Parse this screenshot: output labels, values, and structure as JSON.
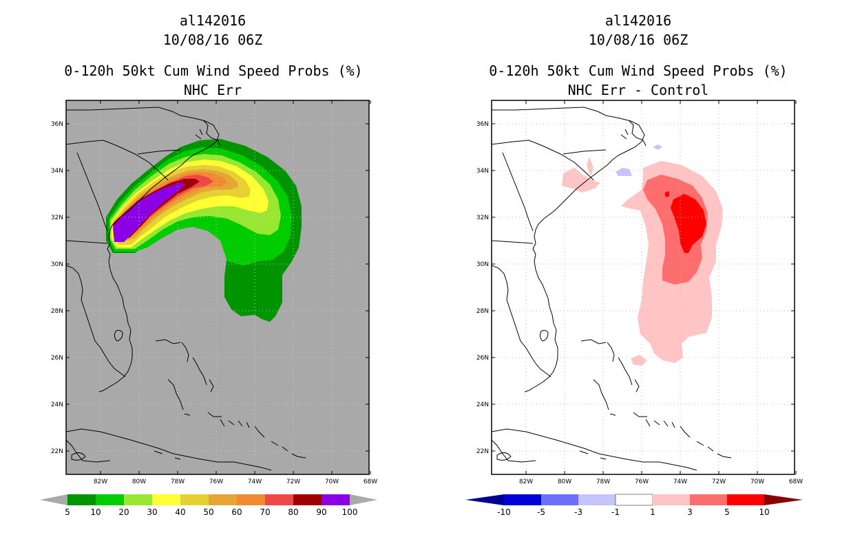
{
  "left": {
    "storm": "al142016",
    "datetime": "10/08/16 06Z",
    "product": "0-120h 50kt Cum Wind Speed Probs (%)",
    "subtitle": "NHC Err",
    "background_color": "#a9a9a9",
    "colorbar": {
      "colors": [
        "#009400",
        "#00cc00",
        "#99e633",
        "#ffff33",
        "#e6d033",
        "#e6a633",
        "#f08a33",
        "#f04848",
        "#a00000",
        "#8c00e6"
      ],
      "end_color": "#a9a9a9",
      "labels": [
        "5",
        "10",
        "20",
        "30",
        "40",
        "50",
        "60",
        "70",
        "80",
        "90",
        "100"
      ]
    }
  },
  "right": {
    "storm": "al142016",
    "datetime": "10/08/16 06Z",
    "product": "0-120h 50kt Cum Wind Speed Probs (%)",
    "subtitle": "NHC Err - Control",
    "background_color": "#ffffff",
    "colorbar": {
      "colors": [
        "#0000d8",
        "#6e6eff",
        "#c4c4ff",
        "#ffffff",
        "#ffc4c4",
        "#ff6e6e",
        "#ff0000"
      ],
      "left_end_color": "#000090",
      "right_end_color": "#8a0000",
      "labels": [
        "-10",
        "-5",
        "-3",
        "-1",
        "1",
        "3",
        "5",
        "10"
      ]
    }
  },
  "axes": {
    "lon_labels": [
      "82W",
      "80W",
      "78W",
      "76W",
      "74W",
      "72W",
      "70W",
      "68W"
    ],
    "lat_labels": [
      "36N",
      "34N",
      "32N",
      "30N",
      "28N",
      "26N",
      "24N",
      "22N"
    ]
  }
}
